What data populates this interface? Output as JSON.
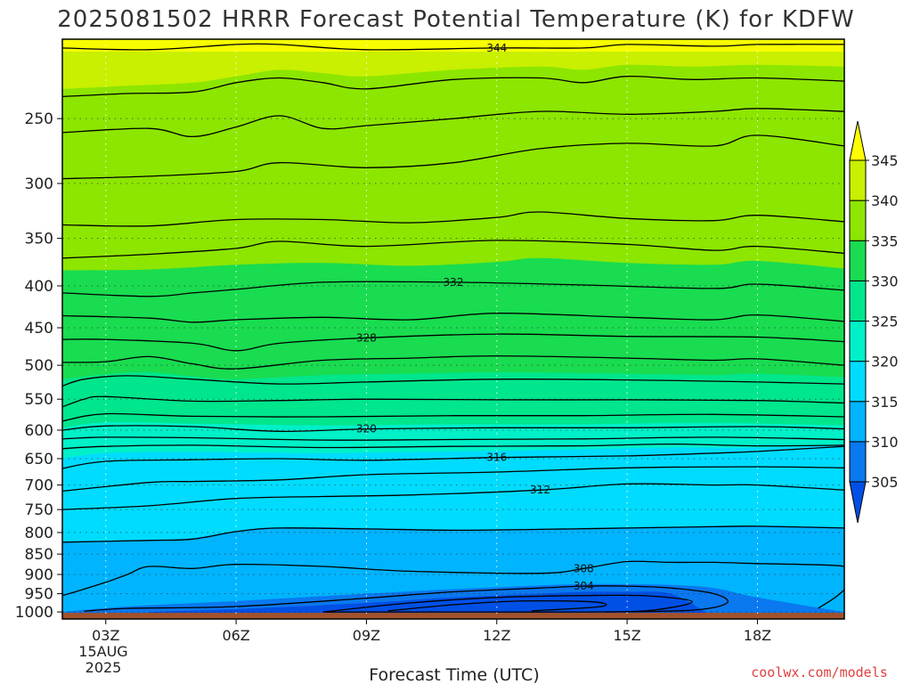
{
  "chart_data": {
    "type": "heatmap",
    "title": "2025081502 HRRR Forecast Potential Temperature (K) for KDFW",
    "xlabel": "Forecast Time (UTC)",
    "ylabel": "",
    "credit": "coolwx.com/models",
    "x_ticks": [
      "03Z",
      "06Z",
      "09Z",
      "12Z",
      "15Z",
      "18Z"
    ],
    "x_tick_hours": [
      3,
      6,
      9,
      12,
      15,
      18
    ],
    "x_date_lines": [
      "15AUG",
      "2025"
    ],
    "xlim_hours": [
      2,
      20
    ],
    "y_ticks": [
      250,
      300,
      350,
      400,
      450,
      500,
      550,
      600,
      650,
      700,
      750,
      800,
      850,
      900,
      950,
      1000
    ],
    "y_tick_labels": [
      "250",
      "300",
      "350",
      "400",
      "450",
      "500",
      "550",
      "600",
      "650",
      "700",
      "750",
      "800",
      "850",
      "900",
      "950",
      "1000"
    ],
    "ylim_hPa": [
      200,
      1020
    ],
    "y_scale": "log, inverted",
    "grid": true,
    "legend": "colorbar right",
    "colorbar_levels": [
      305,
      310,
      315,
      320,
      325,
      330,
      335,
      340,
      345
    ],
    "colorbar_colors": [
      "#0050e6",
      "#0a78ef",
      "#00b4ff",
      "#00dcff",
      "#00f0c8",
      "#00e68c",
      "#19dc50",
      "#8ce600",
      "#c8f000",
      "#ffff00"
    ],
    "ground_color": "#a0522d",
    "series": [
      {
        "name": "",
        "values": [
          {
            "hour": 2,
            "level": 1000,
            "theta": 306
          },
          {
            "hour": 12,
            "level": 990,
            "theta": 302
          },
          {
            "hour": 17,
            "level": 1000,
            "theta": 306
          }
        ]
      }
    ],
    "contours": [
      {
        "label": "344",
        "x": [
          2,
          4,
          6,
          7,
          9,
          12,
          14,
          15,
          17,
          18,
          20
        ],
        "p": [
          205,
          206,
          203,
          203,
          206,
          205,
          205,
          203,
          204,
          203,
          203
        ]
      },
      {
        "label": "",
        "x": [
          2,
          3.5,
          5,
          6,
          7,
          8,
          9,
          11,
          13,
          14,
          15,
          16.5,
          18,
          20
        ],
        "p": [
          235,
          233,
          232,
          226,
          223,
          226,
          230,
          224,
          223,
          226,
          222,
          224,
          223,
          225
        ]
      },
      {
        "label": "",
        "x": [
          2,
          4,
          5,
          6,
          7,
          8,
          9,
          11,
          13,
          15,
          17,
          18,
          20
        ],
        "p": [
          260,
          257,
          263,
          256,
          248,
          257,
          255,
          250,
          245,
          247,
          245,
          243,
          245
        ]
      },
      {
        "label": "",
        "x": [
          2,
          4,
          6,
          7,
          9,
          11,
          13,
          15,
          17,
          18,
          20
        ],
        "p": [
          296,
          294,
          290,
          283,
          287,
          283,
          272,
          268,
          270,
          262,
          270
        ]
      },
      {
        "label": "",
        "x": [
          2,
          4,
          6,
          8,
          10,
          12,
          13,
          15,
          17,
          18,
          20
        ],
        "p": [
          337,
          338,
          332,
          332,
          335,
          330,
          325,
          331,
          333,
          328,
          334
        ]
      },
      {
        "label": "",
        "x": [
          2,
          4,
          6,
          7,
          9,
          12,
          15,
          17,
          18,
          20
        ],
        "p": [
          370,
          366,
          360,
          353,
          358,
          352,
          356,
          362,
          358,
          365
        ]
      },
      {
        "label": "332",
        "x": [
          2,
          4,
          5,
          6,
          8,
          11,
          14,
          17,
          18,
          20
        ],
        "p": [
          408,
          412,
          408,
          404,
          396,
          396,
          399,
          403,
          398,
          405
        ]
      },
      {
        "label": "",
        "x": [
          2,
          4,
          5,
          6,
          8,
          10,
          12,
          15,
          17,
          18,
          20
        ],
        "p": [
          435,
          438,
          443,
          440,
          437,
          440,
          432,
          437,
          440,
          434,
          442
        ]
      },
      {
        "label": "328",
        "x": [
          2,
          3,
          5,
          6,
          7,
          9,
          12,
          15,
          18,
          20
        ],
        "p": [
          465,
          465,
          470,
          480,
          470,
          463,
          458,
          461,
          462,
          468
        ]
      },
      {
        "label": "",
        "x": [
          2,
          3,
          4,
          5,
          6,
          8,
          10,
          12,
          15,
          17,
          18,
          20
        ],
        "p": [
          496,
          495,
          488,
          498,
          505,
          493,
          490,
          487,
          490,
          493,
          491,
          500
        ]
      },
      {
        "label": "",
        "x": [
          2,
          2.5,
          3.5,
          5,
          7,
          9,
          12,
          15,
          18,
          20
        ],
        "p": [
          530,
          520,
          515,
          520,
          527,
          524,
          520,
          521,
          524,
          527
        ]
      },
      {
        "label": "",
        "x": [
          2,
          2.5,
          3,
          5,
          7,
          9,
          12,
          15,
          18,
          20
        ],
        "p": [
          562,
          550,
          546,
          553,
          552,
          550,
          551,
          551,
          552,
          556
        ]
      },
      {
        "label": "",
        "x": [
          2,
          3,
          5,
          8,
          11,
          14,
          17,
          20
        ],
        "p": [
          585,
          573,
          577,
          578,
          576,
          576,
          574,
          578
        ]
      },
      {
        "label": "320",
        "x": [
          2,
          3,
          5,
          7,
          9,
          12,
          15,
          18,
          20
        ],
        "p": [
          600,
          593,
          594,
          602,
          598,
          596,
          596,
          594,
          598
        ]
      },
      {
        "label": "",
        "x": [
          2,
          3,
          5,
          8,
          11,
          14,
          17,
          20
        ],
        "p": [
          615,
          612,
          613,
          617,
          616,
          615,
          612,
          616
        ]
      },
      {
        "label": "",
        "x": [
          2,
          3,
          5,
          8,
          11,
          14,
          16,
          18,
          20
        ],
        "p": [
          632,
          628,
          626,
          630,
          628,
          627,
          624,
          627,
          626
        ]
      },
      {
        "label": "316",
        "x": [
          2,
          3,
          5,
          7,
          9,
          12,
          15,
          17,
          18,
          20
        ],
        "p": [
          668,
          655,
          652,
          650,
          653,
          648,
          645,
          640,
          637,
          628
        ]
      },
      {
        "label": "",
        "x": [
          2,
          4,
          5,
          7,
          9,
          12,
          15,
          18,
          20
        ],
        "p": [
          712,
          695,
          693,
          690,
          680,
          675,
          667,
          665,
          667
        ]
      },
      {
        "label": "312",
        "x": [
          2,
          4,
          6,
          8,
          10,
          13,
          15,
          17,
          18,
          20
        ],
        "p": [
          750,
          742,
          727,
          723,
          720,
          710,
          698,
          700,
          700,
          710
        ]
      },
      {
        "label": "",
        "x": [
          2,
          4,
          5,
          6,
          7,
          9,
          11,
          13,
          15,
          17,
          18,
          20
        ],
        "p": [
          822,
          818,
          815,
          798,
          790,
          792,
          795,
          793,
          790,
          787,
          786,
          790
        ]
      },
      {
        "label": "308",
        "x": [
          2,
          2.3,
          3,
          3.5,
          4,
          5,
          6,
          8,
          10,
          13,
          14,
          15,
          16,
          17,
          18,
          19,
          20,
          20.3,
          19.9,
          19.4
        ],
        "p": [
          955,
          945,
          920,
          900,
          880,
          885,
          875,
          880,
          892,
          897,
          885,
          868,
          870,
          870,
          873,
          875,
          880,
          900,
          950,
          990
        ]
      },
      {
        "label": "304",
        "x": [
          2.5,
          3.5,
          6,
          9,
          11,
          13,
          14,
          15,
          16,
          17,
          17.3,
          16.5,
          14.5
        ],
        "p": [
          998,
          990,
          985,
          962,
          945,
          935,
          930,
          930,
          935,
          950,
          975,
          995,
          1000
        ]
      },
      {
        "label": "",
        "x": [
          8,
          10,
          12,
          14,
          15.5,
          16.5,
          15.5,
          14,
          12,
          10,
          8
        ],
        "p": [
          1000,
          975,
          960,
          955,
          956,
          972,
          996,
          1000,
          1000,
          1000,
          1000
        ]
      },
      {
        "label": "",
        "x": [
          9.5,
          11,
          12.5,
          14.2,
          14.4,
          12.8
        ],
        "p": [
          997,
          980,
          970,
          972,
          985,
          997
        ]
      }
    ]
  }
}
